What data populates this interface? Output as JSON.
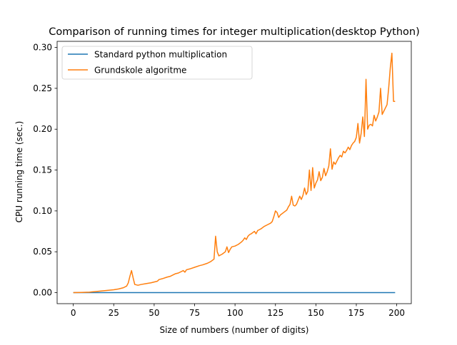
{
  "chart_data": {
    "type": "line",
    "title": "Comparison of running times for integer multiplication(desktop Python)",
    "xlabel": "Size of numbers (number of digits)",
    "ylabel": "CPU running time (sec.)",
    "xlim": [
      -10,
      209
    ],
    "ylim": [
      -0.0135,
      0.3075
    ],
    "xticks": [
      0,
      25,
      50,
      75,
      100,
      125,
      150,
      175,
      200
    ],
    "yticks": [
      0.0,
      0.05,
      0.1,
      0.15,
      0.2,
      0.25,
      0.3
    ],
    "xtick_labels": [
      "0",
      "25",
      "50",
      "75",
      "100",
      "125",
      "150",
      "175",
      "200"
    ],
    "ytick_labels": [
      "0.00",
      "0.05",
      "0.10",
      "0.15",
      "0.20",
      "0.25",
      "0.30"
    ],
    "grid": false,
    "legend_position": "top-left",
    "series": [
      {
        "name": "Standard python multiplication",
        "color": "#1f77b4",
        "x": [
          0,
          199
        ],
        "y": [
          0.0,
          0.0
        ]
      },
      {
        "name": "Grundskole algoritme",
        "color": "#ff7f0e",
        "x": [
          0,
          5,
          10,
          15,
          20,
          25,
          28,
          31,
          33,
          34,
          35,
          36,
          37,
          38,
          40,
          42,
          45,
          48,
          50,
          52,
          53,
          55,
          58,
          60,
          63,
          65,
          68,
          69,
          70,
          72,
          75,
          78,
          80,
          83,
          85,
          87,
          88,
          89,
          90,
          92,
          94,
          95,
          96,
          97,
          98,
          100,
          102,
          104,
          105,
          106,
          107,
          108,
          109,
          110,
          112,
          113,
          114,
          115,
          116,
          118,
          120,
          122,
          123,
          124,
          125,
          126,
          127,
          128,
          130,
          132,
          133,
          134,
          135,
          136,
          137,
          138,
          139,
          140,
          141,
          142,
          143,
          144,
          145,
          146,
          147,
          148,
          149,
          150,
          151,
          152,
          153,
          154,
          155,
          156,
          157,
          158,
          159,
          160,
          161,
          162,
          163,
          164,
          165,
          166,
          167,
          168,
          169,
          170,
          171,
          172,
          173,
          174,
          175,
          176,
          177,
          178,
          179,
          180,
          181,
          182,
          183,
          184,
          185,
          186,
          187,
          188,
          189,
          190,
          191,
          192,
          193,
          194,
          195,
          196,
          197,
          198,
          199
        ],
        "y": [
          0.0,
          0.0002,
          0.0006,
          0.0015,
          0.0025,
          0.0035,
          0.0045,
          0.006,
          0.008,
          0.012,
          0.02,
          0.027,
          0.018,
          0.01,
          0.009,
          0.01,
          0.011,
          0.012,
          0.013,
          0.014,
          0.016,
          0.017,
          0.019,
          0.02,
          0.023,
          0.024,
          0.027,
          0.025,
          0.028,
          0.029,
          0.031,
          0.033,
          0.034,
          0.036,
          0.038,
          0.041,
          0.069,
          0.05,
          0.045,
          0.047,
          0.05,
          0.056,
          0.049,
          0.053,
          0.056,
          0.057,
          0.059,
          0.062,
          0.064,
          0.067,
          0.065,
          0.069,
          0.071,
          0.072,
          0.075,
          0.072,
          0.076,
          0.077,
          0.078,
          0.081,
          0.083,
          0.085,
          0.087,
          0.093,
          0.1,
          0.098,
          0.092,
          0.095,
          0.098,
          0.101,
          0.105,
          0.108,
          0.118,
          0.107,
          0.106,
          0.108,
          0.113,
          0.118,
          0.114,
          0.119,
          0.128,
          0.12,
          0.124,
          0.15,
          0.125,
          0.153,
          0.128,
          0.134,
          0.138,
          0.148,
          0.137,
          0.141,
          0.152,
          0.143,
          0.148,
          0.155,
          0.176,
          0.151,
          0.16,
          0.157,
          0.161,
          0.165,
          0.168,
          0.166,
          0.173,
          0.171,
          0.174,
          0.178,
          0.175,
          0.18,
          0.183,
          0.185,
          0.19,
          0.207,
          0.183,
          0.195,
          0.215,
          0.191,
          0.261,
          0.2,
          0.205,
          0.206,
          0.204,
          0.217,
          0.21,
          0.215,
          0.221,
          0.25,
          0.218,
          0.222,
          0.226,
          0.23,
          0.25,
          0.275,
          0.293,
          0.234,
          0.234
        ]
      }
    ]
  }
}
